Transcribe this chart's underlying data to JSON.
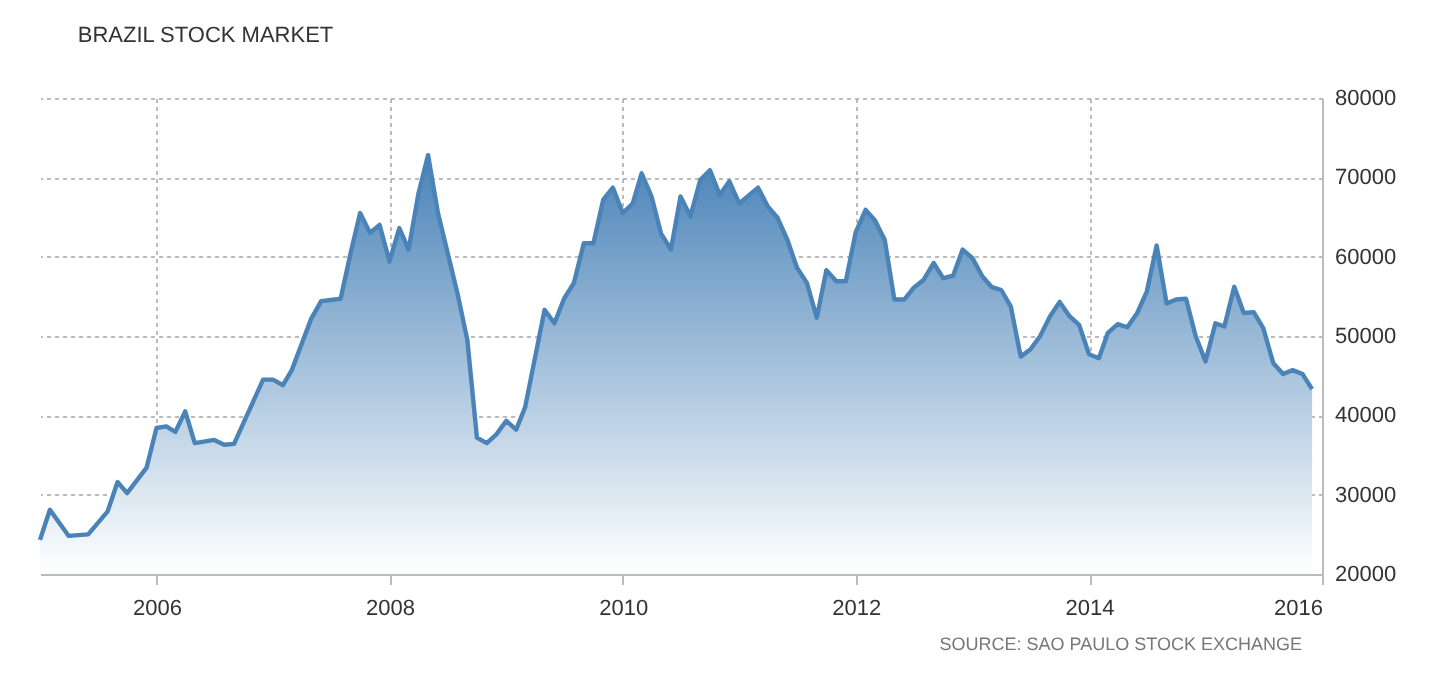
{
  "chart_data": {
    "type": "area",
    "title": "BRAZIL STOCK MARKET",
    "annotations": [
      "SOURCE: SAO PAULO STOCK EXCHANGE"
    ],
    "xlim": [
      "2005-01",
      "2016-01"
    ],
    "xticks": [
      "2006",
      "2008",
      "2010",
      "2012",
      "2014",
      "2016"
    ],
    "ylim": [
      20000,
      80000
    ],
    "yticks": [
      20000,
      30000,
      40000,
      50000,
      60000,
      70000,
      80000
    ],
    "grid": true,
    "series": [
      {
        "color": "#4a83b8",
        "x": [
          "2005-01",
          "2005-02",
          "2005-04",
          "2005-06",
          "2005-08",
          "2005-09",
          "2005-10",
          "2005-12",
          "2006-01",
          "2006-02",
          "2006-03",
          "2006-04",
          "2006-05",
          "2006-07",
          "2006-08",
          "2006-09",
          "2006-12",
          "2007-01",
          "2007-02",
          "2007-03",
          "2007-05",
          "2007-06",
          "2007-08",
          "2007-09",
          "2007-10",
          "2007-11",
          "2007-12",
          "2008-01",
          "2008-02",
          "2008-03",
          "2008-04",
          "2008-05",
          "2008-06",
          "2008-08",
          "2008-09",
          "2008-10",
          "2008-11",
          "2008-12",
          "2009-01",
          "2009-02",
          "2009-03",
          "2009-05",
          "2009-06",
          "2009-07",
          "2009-08",
          "2009-09",
          "2009-10",
          "2009-11",
          "2009-12",
          "2010-01",
          "2010-02",
          "2010-03",
          "2010-04",
          "2010-05",
          "2010-06",
          "2010-07",
          "2010-08",
          "2010-09",
          "2010-10",
          "2010-11",
          "2010-12",
          "2011-01",
          "2011-03",
          "2011-04",
          "2011-05",
          "2011-06",
          "2011-07",
          "2011-08",
          "2011-09",
          "2011-10",
          "2011-11",
          "2011-12",
          "2012-01",
          "2012-02",
          "2012-03",
          "2012-04",
          "2012-05",
          "2012-06",
          "2012-07",
          "2012-08",
          "2012-09",
          "2012-10",
          "2012-11",
          "2012-12",
          "2013-01",
          "2013-02",
          "2013-03",
          "2013-04",
          "2013-05",
          "2013-06",
          "2013-07",
          "2013-08",
          "2013-09",
          "2013-10",
          "2013-11",
          "2013-12",
          "2014-01",
          "2014-02",
          "2014-03",
          "2014-04",
          "2014-05",
          "2014-06",
          "2014-07",
          "2014-08",
          "2014-09",
          "2014-10",
          "2014-11",
          "2014-12",
          "2015-01",
          "2015-02",
          "2015-03",
          "2015-04",
          "2015-05",
          "2015-06",
          "2015-07",
          "2015-08",
          "2015-09",
          "2015-10",
          "2015-11",
          "2015-12"
        ],
        "values": [
          24300,
          28100,
          24800,
          25000,
          27900,
          31600,
          30200,
          33400,
          38400,
          38600,
          37900,
          40500,
          36500,
          36900,
          36300,
          36400,
          44500,
          44500,
          43800,
          45700,
          52200,
          54400,
          54700,
          60400,
          65500,
          63000,
          64000,
          59400,
          63600,
          60900,
          68000,
          72800,
          65500,
          55400,
          49500,
          37200,
          36500,
          37600,
          39300,
          38200,
          41000,
          53300,
          51600,
          54700,
          56700,
          61700,
          61700,
          67200,
          68700,
          65500,
          66700,
          70500,
          67600,
          62900,
          60900,
          67600,
          65100,
          69700,
          70900,
          67800,
          69500,
          66700,
          68700,
          66300,
          64900,
          62100,
          58600,
          56700,
          52300,
          58300,
          56900,
          56900,
          63100,
          65900,
          64600,
          62100,
          54600,
          54600,
          56100,
          57100,
          59200,
          57300,
          57600,
          60900,
          59800,
          57500,
          56200,
          55800,
          53700,
          47400,
          48300,
          50000,
          52500,
          54300,
          52500,
          51400,
          47700,
          47200,
          50400,
          51500,
          51100,
          52900,
          55600,
          61400,
          54100,
          54600,
          54700,
          50000,
          46800,
          51600,
          51200,
          56200,
          52900,
          53000,
          51000,
          46600,
          45200,
          45700,
          45200,
          43300
        ]
      }
    ]
  }
}
